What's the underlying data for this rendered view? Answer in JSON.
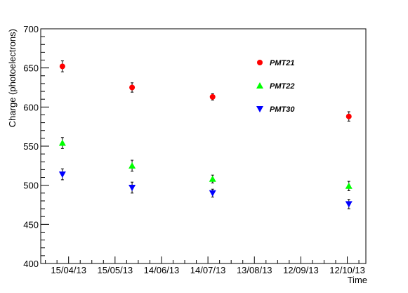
{
  "chart_data": {
    "type": "scatter",
    "xlabel": "Time",
    "ylabel": "Charge (photoelectrons)",
    "xlim": [
      "2013-03-28",
      "2013-10-24"
    ],
    "ylim": [
      400,
      700
    ],
    "grid": false,
    "legend_position": "top-right",
    "x_ticks": [
      {
        "date": "2013-04-15",
        "label": "15/04/13"
      },
      {
        "date": "2013-05-15",
        "label": "15/05/13"
      },
      {
        "date": "2013-06-14",
        "label": "14/06/13"
      },
      {
        "date": "2013-07-14",
        "label": "14/07/13"
      },
      {
        "date": "2013-08-13",
        "label": "13/08/13"
      },
      {
        "date": "2013-09-12",
        "label": "12/09/13"
      },
      {
        "date": "2013-10-12",
        "label": "12/10/13"
      }
    ],
    "y_ticks": [
      400,
      450,
      500,
      550,
      600,
      650,
      700
    ],
    "series": [
      {
        "name": "PMT21",
        "color": "#ff0000",
        "marker": "circle",
        "points": [
          {
            "x": "2013-04-11",
            "y": 652,
            "err": 7
          },
          {
            "x": "2013-05-26",
            "y": 625,
            "err": 6
          },
          {
            "x": "2013-07-17",
            "y": 613,
            "err": 4
          },
          {
            "x": "2013-10-13",
            "y": 588,
            "err": 6
          }
        ]
      },
      {
        "name": "PMT22",
        "color": "#00ff00",
        "marker": "triangle-up",
        "points": [
          {
            "x": "2013-04-11",
            "y": 554,
            "err": 7
          },
          {
            "x": "2013-05-26",
            "y": 525,
            "err": 7
          },
          {
            "x": "2013-07-17",
            "y": 508,
            "err": 5
          },
          {
            "x": "2013-10-13",
            "y": 499,
            "err": 6
          }
        ]
      },
      {
        "name": "PMT30",
        "color": "#0000ff",
        "marker": "triangle-down",
        "points": [
          {
            "x": "2013-04-11",
            "y": 514,
            "err": 7
          },
          {
            "x": "2013-05-26",
            "y": 497,
            "err": 7
          },
          {
            "x": "2013-07-17",
            "y": 490,
            "err": 5
          },
          {
            "x": "2013-10-13",
            "y": 476,
            "err": 6
          }
        ]
      }
    ]
  }
}
